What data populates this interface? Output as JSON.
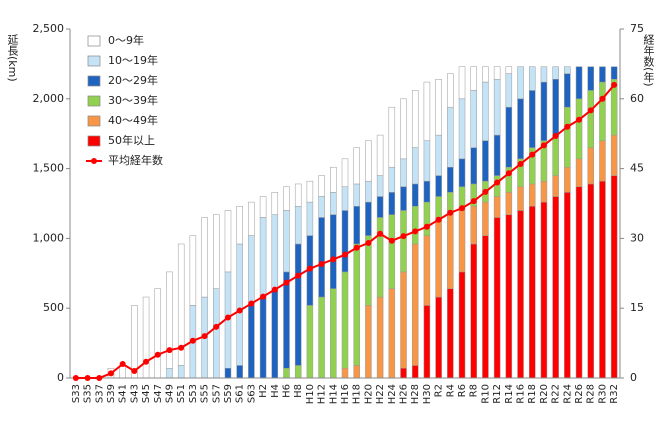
{
  "chart_data": {
    "type": "bar",
    "y_label": "延長(km)",
    "y2_label": "経年数(年)",
    "categories": [
      "S33",
      "S35",
      "S37",
      "S39",
      "S41",
      "S43",
      "S45",
      "S47",
      "S49",
      "S51",
      "S53",
      "S55",
      "S57",
      "S59",
      "S61",
      "S63",
      "H2",
      "H4",
      "H6",
      "H8",
      "H10",
      "H12",
      "H14",
      "H16",
      "H18",
      "H20",
      "H22",
      "H24",
      "H26",
      "H28",
      "H30",
      "R2",
      "R4",
      "R6",
      "R8",
      "R10",
      "R12",
      "R14",
      "R16",
      "R18",
      "R20",
      "R22",
      "R24",
      "R26",
      "R28",
      "R30",
      "R32"
    ],
    "series": [
      {
        "name": "0～9年",
        "color": "#ffffff",
        "values": [
          0,
          0,
          0,
          70,
          90,
          520,
          580,
          640,
          690,
          870,
          500,
          570,
          530,
          440,
          270,
          240,
          150,
          160,
          170,
          160,
          150,
          150,
          180,
          200,
          260,
          290,
          290,
          430,
          430,
          410,
          420,
          400,
          240,
          230,
          170,
          110,
          90,
          50,
          0,
          0,
          0,
          0,
          0,
          0,
          0,
          0,
          0
        ]
      },
      {
        "name": "10～19年",
        "color": "#c5e3f6",
        "values": [
          0,
          0,
          0,
          0,
          0,
          0,
          0,
          0,
          70,
          90,
          520,
          580,
          640,
          690,
          870,
          500,
          570,
          530,
          440,
          270,
          240,
          150,
          160,
          170,
          160,
          150,
          150,
          180,
          200,
          260,
          290,
          290,
          430,
          430,
          410,
          420,
          400,
          240,
          230,
          170,
          110,
          90,
          50,
          0,
          0,
          0,
          0
        ]
      },
      {
        "name": "20～29年",
        "color": "#1f63c0",
        "values": [
          0,
          0,
          0,
          0,
          0,
          0,
          0,
          0,
          0,
          0,
          0,
          0,
          0,
          70,
          90,
          520,
          580,
          640,
          690,
          870,
          500,
          570,
          530,
          440,
          270,
          240,
          150,
          160,
          170,
          160,
          150,
          150,
          180,
          200,
          260,
          290,
          290,
          430,
          430,
          410,
          420,
          400,
          240,
          230,
          170,
          110,
          90
        ]
      },
      {
        "name": "30～39年",
        "color": "#92d050",
        "values": [
          0,
          0,
          0,
          0,
          0,
          0,
          0,
          0,
          0,
          0,
          0,
          0,
          0,
          0,
          0,
          0,
          0,
          0,
          70,
          90,
          520,
          580,
          640,
          690,
          870,
          500,
          570,
          530,
          440,
          270,
          240,
          150,
          160,
          170,
          160,
          150,
          150,
          180,
          200,
          260,
          290,
          290,
          430,
          430,
          410,
          420,
          400
        ]
      },
      {
        "name": "40～49年",
        "color": "#f79646",
        "values": [
          0,
          0,
          0,
          0,
          0,
          0,
          0,
          0,
          0,
          0,
          0,
          0,
          0,
          0,
          0,
          0,
          0,
          0,
          0,
          0,
          0,
          0,
          0,
          70,
          90,
          520,
          580,
          640,
          690,
          870,
          500,
          570,
          530,
          440,
          270,
          240,
          150,
          160,
          170,
          160,
          150,
          150,
          180,
          200,
          260,
          290,
          290
        ]
      },
      {
        "name": "50年以上",
        "color": "#ff0000",
        "values": [
          0,
          0,
          0,
          0,
          0,
          0,
          0,
          0,
          0,
          0,
          0,
          0,
          0,
          0,
          0,
          0,
          0,
          0,
          0,
          0,
          0,
          0,
          0,
          0,
          0,
          0,
          0,
          0,
          70,
          90,
          520,
          580,
          640,
          760,
          960,
          1020,
          1150,
          1170,
          1200,
          1230,
          1260,
          1300,
          1330,
          1370,
          1390,
          1410,
          1450
        ]
      },
      {
        "name": "平均経年数",
        "color": "#ff0000",
        "type": "line",
        "axis": "y2",
        "values": [
          0,
          0,
          0,
          1,
          3,
          1.5,
          3.5,
          5,
          6,
          6.5,
          8,
          9,
          11,
          13,
          14.5,
          16,
          17.5,
          19,
          20.5,
          22,
          23.5,
          24.5,
          25.5,
          26.5,
          28,
          29,
          31,
          29.5,
          30.5,
          31.5,
          32.5,
          34,
          35.5,
          36.5,
          38,
          40,
          42,
          44,
          46,
          48,
          50,
          52,
          54,
          55.5,
          57.5,
          60,
          63
        ]
      }
    ],
    "ylim": [
      0,
      2500
    ],
    "yticks": [
      0,
      500,
      {
        "value": 1000,
        "label": "1,000"
      },
      {
        "value": 1500,
        "label": "1,500"
      },
      {
        "value": 2000,
        "label": "2,000"
      },
      {
        "value": 2500,
        "label": "2,500"
      }
    ],
    "y2lim": [
      0,
      75
    ],
    "y2ticks": [
      0,
      15,
      30,
      45,
      60,
      75
    ],
    "legend": "upper-left"
  }
}
